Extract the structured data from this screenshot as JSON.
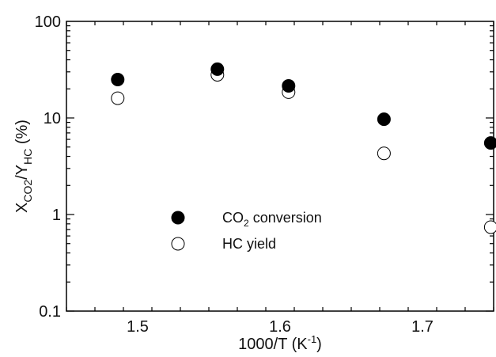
{
  "chart_data": {
    "type": "scatter",
    "xlabel": {
      "main": "1000/T (K",
      "sup": "-1",
      "close": ")"
    },
    "ylabel": {
      "p1": "X",
      "sub1": "CO2",
      "p2": "/Y",
      "sub2": "HC",
      "p3": " (%)"
    },
    "xlim": [
      1.45,
      1.75
    ],
    "ylim": [
      0.1,
      100
    ],
    "yscale": "log",
    "x_ticks": [
      {
        "value": 1.5,
        "label": "1.5"
      },
      {
        "value": 1.6,
        "label": "1.6"
      },
      {
        "value": 1.7,
        "label": "1.7"
      }
    ],
    "y_ticks": [
      {
        "value": 0.1,
        "label": "0.1"
      },
      {
        "value": 1,
        "label": "1"
      },
      {
        "value": 10,
        "label": "10"
      },
      {
        "value": 100,
        "label": "100"
      }
    ],
    "legend_placement": "center-left",
    "series": [
      {
        "label_main": "CO",
        "label_sub": "2",
        "label_rest": " conversion",
        "marker": "filled-circle",
        "color": "#000000",
        "x": [
          1.486,
          1.556,
          1.606,
          1.673,
          1.748
        ],
        "y": [
          25,
          32,
          21.5,
          9.7,
          5.5
        ]
      },
      {
        "label_main": "HC yield",
        "marker": "open-circle",
        "color": "#000000",
        "x": [
          1.486,
          1.556,
          1.606,
          1.673,
          1.748
        ],
        "y": [
          16,
          28,
          18.5,
          4.3,
          0.74
        ]
      }
    ]
  }
}
